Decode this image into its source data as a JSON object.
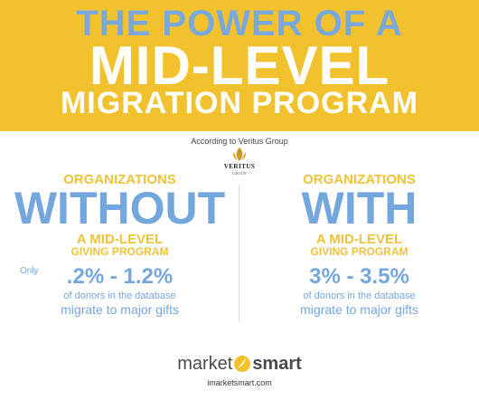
{
  "header": {
    "title_line1_prefix": "THE ",
    "title_line1_highlight": "POWER",
    "title_line1_suffix": " OF A",
    "title_line2": "MID-LEVEL",
    "title_line3": "MIGRATION PROGRAM"
  },
  "source": {
    "text": "According to Veritus Group",
    "logo_name": "VERITUS",
    "logo_sub": "GROUP"
  },
  "left": {
    "organizations": "ORGANIZATIONS",
    "big_word": "WITHOUT",
    "mid_level": "A MID-LEVEL",
    "giving_program": "GIVING PROGRAM",
    "only": "Only",
    "percent": ".2% - 1.2%",
    "donors": "of donors in the database",
    "migrate": "migrate to major gifts"
  },
  "right": {
    "organizations": "ORGANIZATIONS",
    "big_word": "WITH",
    "mid_level": "A MID-LEVEL",
    "giving_program": "GIVING PROGRAM",
    "percent": "3% - 3.5%",
    "donors": "of donors in the database",
    "migrate": "migrate to major gifts"
  },
  "footer": {
    "logo_market": "market",
    "logo_smart": "smart",
    "website": "imarketsmart.com"
  },
  "colors": {
    "banner": "#f1c22d",
    "accent_blue": "#74a7de",
    "gold_text": "#eec23a"
  }
}
